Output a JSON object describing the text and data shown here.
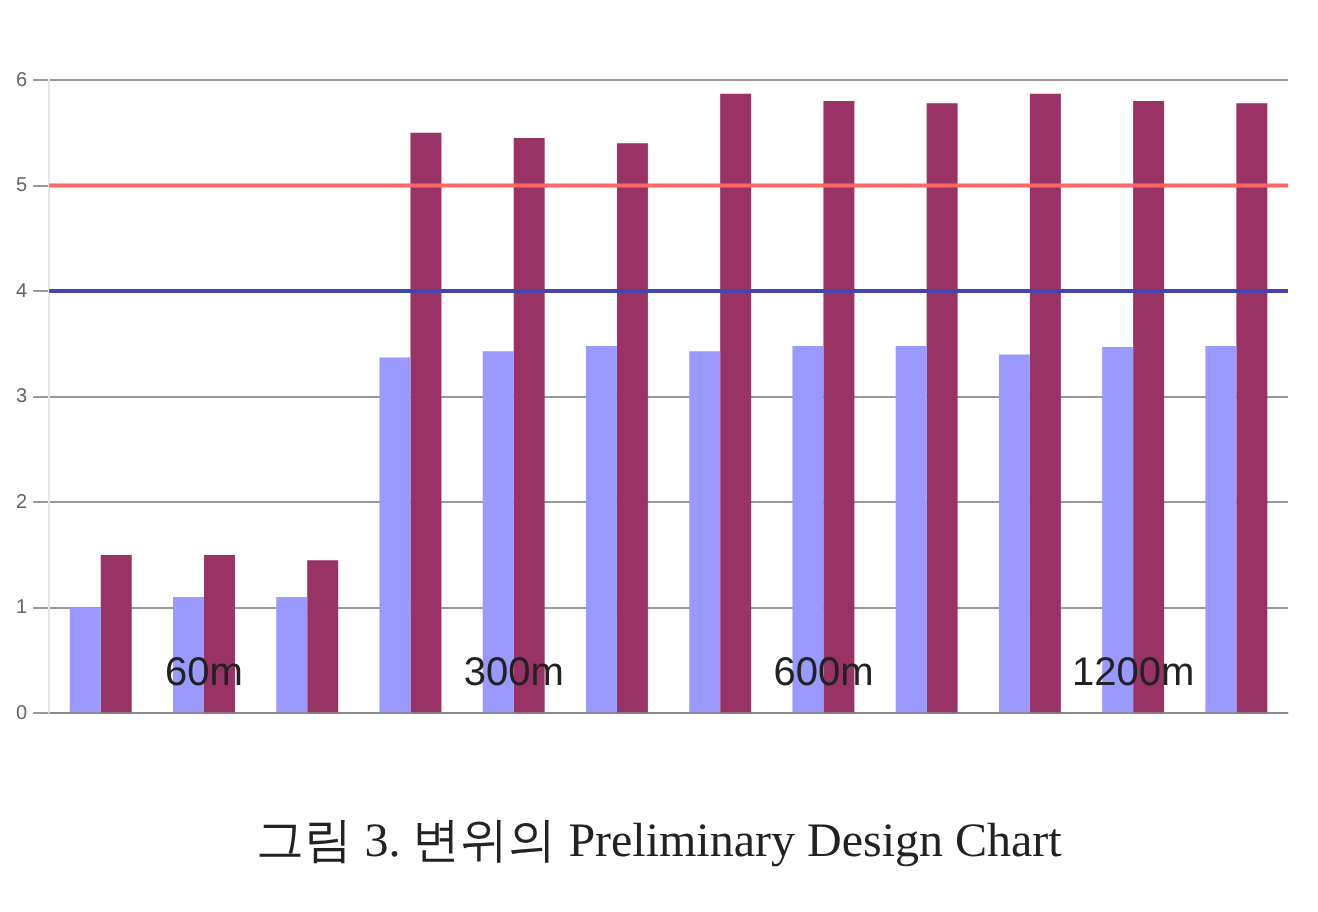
{
  "chart_data": {
    "type": "bar",
    "categories": [
      null,
      null,
      null,
      null,
      null,
      null,
      null,
      null,
      null,
      null,
      null,
      null
    ],
    "series": [
      {
        "color": "#9999ff",
        "values": [
          1.0,
          1.1,
          1.1,
          3.37,
          3.43,
          3.48,
          3.43,
          3.48,
          3.48,
          3.4,
          3.47,
          3.48
        ]
      },
      {
        "color": "#993366",
        "values": [
          1.5,
          1.5,
          1.45,
          5.5,
          5.45,
          5.4,
          5.87,
          5.8,
          5.78,
          5.87,
          5.8,
          5.78
        ]
      }
    ],
    "ylim": [
      0,
      6
    ],
    "yticks": [
      0,
      1,
      2,
      3,
      4,
      5,
      6
    ],
    "grid": "y",
    "legend": false,
    "ref_lines": [
      {
        "axis": "y",
        "value": 5,
        "color": "#ff6666"
      },
      {
        "axis": "y",
        "value": 4,
        "color": "#4444aa"
      }
    ],
    "annotations": [
      "60m",
      "300m",
      "600m",
      "1200m",
      "그림 3. 변위의 Preliminary Design Chart"
    ]
  }
}
